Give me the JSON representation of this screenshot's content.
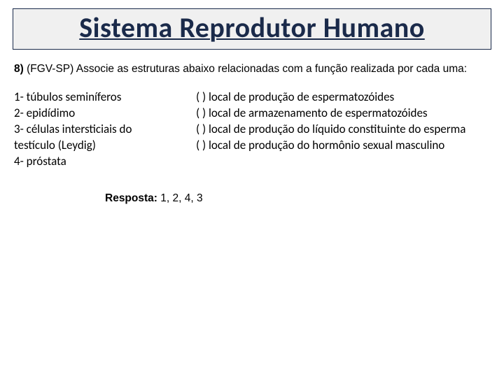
{
  "title": "Sistema Reprodutor Humano",
  "question": {
    "number": "8)",
    "source": "(FGV-SP)",
    "text": "Associe as estruturas abaixo relacionadas com a função realizada por cada uma:"
  },
  "left_items": [
    "1- túbulos seminíferos",
    "2- epidídimo",
    "3- células intersticiais do testículo (Leydig)",
    "4- próstata"
  ],
  "right_items": [
    "(      ) local de produção de espermatozóides",
    "(      ) local de armazenamento de espermatozóides",
    "(      ) local de produção do líquido constituinte do esperma",
    "(      ) local de produção do hormônio sexual masculino"
  ],
  "answer": {
    "label": "Resposta:",
    "value": "1, 2, 4, 3"
  },
  "colors": {
    "title_color": "#1a2a4a",
    "title_bg": "#f0f0f0",
    "text": "#000000",
    "background": "#ffffff"
  },
  "fonts": {
    "title_family": "Calibri",
    "title_size_pt": 30,
    "body_size_pt": 12,
    "list_size_pt": 13
  }
}
